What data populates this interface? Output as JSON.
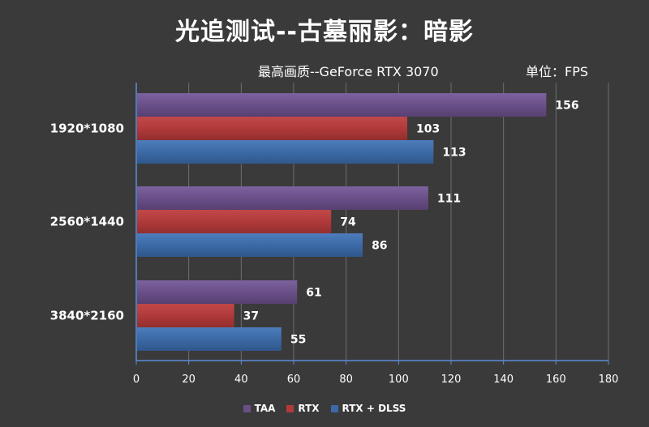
{
  "chart_data": {
    "type": "bar",
    "orientation": "horizontal",
    "title": "光追测试--古墓丽影：暗影",
    "subtitle": "最高画质--GeForce RTX 3070",
    "unit_label": "单位：FPS",
    "categories": [
      "1920*1080",
      "2560*1440",
      "3840*2160"
    ],
    "series": [
      {
        "name": "TAA",
        "color": "#6a4f88",
        "values": [
          156,
          111,
          61
        ]
      },
      {
        "name": "RTX",
        "color": "#b03a3a",
        "values": [
          103,
          74,
          37
        ]
      },
      {
        "name": "RTX + DLSS",
        "color": "#3c6aa6",
        "values": [
          113,
          86,
          55
        ]
      }
    ],
    "xlim": [
      0,
      180
    ],
    "xticks": [
      0,
      20,
      40,
      60,
      80,
      100,
      120,
      140,
      160,
      180
    ],
    "grid": true,
    "legend_position": "bottom"
  }
}
